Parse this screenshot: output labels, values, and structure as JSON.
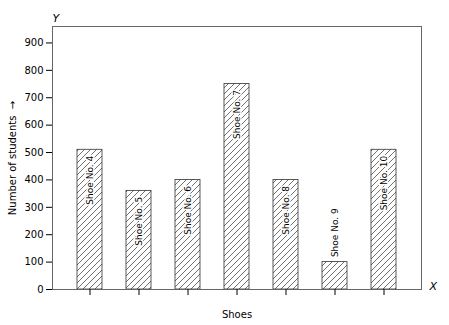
{
  "chart_data": {
    "type": "bar",
    "categories": [
      "Shoe No. 4",
      "Shoe No. 5",
      "Shoe No. 6",
      "Shoe No. 7",
      "Shoe No. 8",
      "Shoe No. 9",
      "Shoe No. 10"
    ],
    "values": [
      510,
      360,
      400,
      750,
      400,
      100,
      510
    ],
    "xlabel": "Shoes",
    "ylabel": "Number of students  →",
    "annotations": [
      "X",
      "Y"
    ],
    "color": "white",
    "ylim": [
      0,
      960
    ],
    "yticks": [
      0,
      100,
      200,
      300,
      400,
      500,
      600,
      700,
      800,
      900
    ],
    "grid": false,
    "tick_labels": "y"
  }
}
